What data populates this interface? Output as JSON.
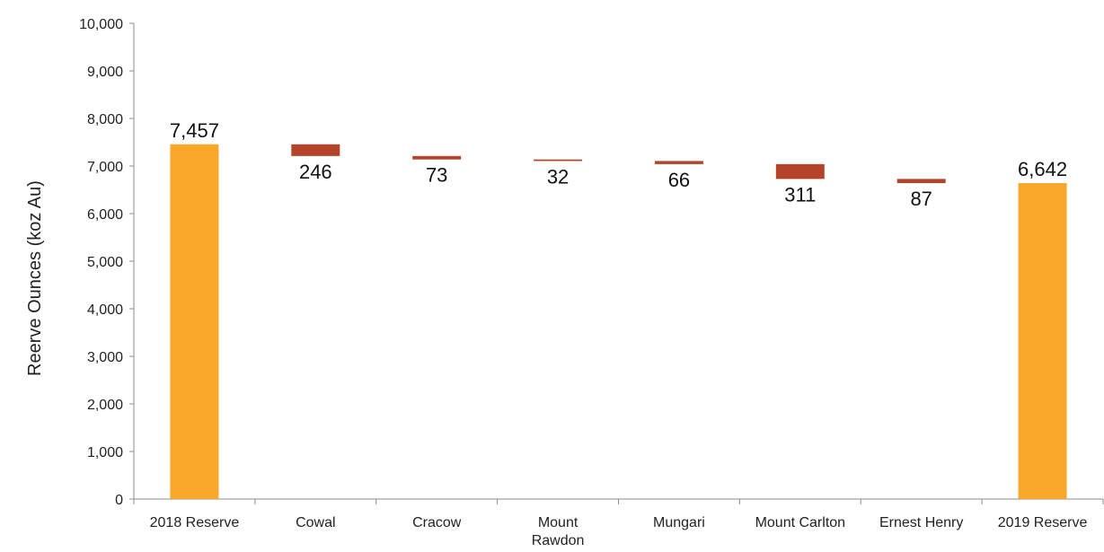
{
  "chart_data": {
    "type": "bar",
    "subtype": "waterfall",
    "title": "",
    "xlabel": "",
    "ylabel": "Reerve Ounces (koz Au)",
    "ylim": [
      0,
      10000
    ],
    "yticks": [
      0,
      1000,
      2000,
      3000,
      4000,
      5000,
      6000,
      7000,
      8000,
      9000,
      10000
    ],
    "ytick_labels": [
      "0",
      "1,000",
      "2,000",
      "3,000",
      "4,000",
      "5,000",
      "6,000",
      "7,000",
      "8,000",
      "9,000",
      "10,000"
    ],
    "grid": false,
    "legend": "none",
    "colors": {
      "total": "#F9A72B",
      "decrease": "#B5432A"
    },
    "categories": [
      "2018 Reserve",
      "Cowal",
      "Cracow",
      "Mount Rawdon",
      "Mungari",
      "Mount Carlton",
      "Ernest Henry",
      "2019 Reserve"
    ],
    "category_lines": [
      [
        "2018 Reserve"
      ],
      [
        "Cowal"
      ],
      [
        "Cracow"
      ],
      [
        "Mount",
        "Rawdon"
      ],
      [
        "Mungari"
      ],
      [
        "Mount Carlton"
      ],
      [
        "Ernest Henry"
      ],
      [
        "2019 Reserve"
      ]
    ],
    "bars": [
      {
        "category": "2018 Reserve",
        "kind": "total",
        "start": 0,
        "end": 7457,
        "label": "7,457"
      },
      {
        "category": "Cowal",
        "kind": "decrease",
        "start": 7457,
        "end": 7211,
        "label": "246"
      },
      {
        "category": "Cracow",
        "kind": "decrease",
        "start": 7211,
        "end": 7138,
        "label": "73"
      },
      {
        "category": "Mount Rawdon",
        "kind": "decrease",
        "start": 7138,
        "end": 7106,
        "label": "32"
      },
      {
        "category": "Mungari",
        "kind": "decrease",
        "start": 7106,
        "end": 7040,
        "label": "66"
      },
      {
        "category": "Mount Carlton",
        "kind": "decrease",
        "start": 7040,
        "end": 6729,
        "label": "311"
      },
      {
        "category": "Ernest Henry",
        "kind": "decrease",
        "start": 6729,
        "end": 6642,
        "label": "87"
      },
      {
        "category": "2019 Reserve",
        "kind": "total",
        "start": 0,
        "end": 6642,
        "label": "6,642"
      }
    ]
  }
}
